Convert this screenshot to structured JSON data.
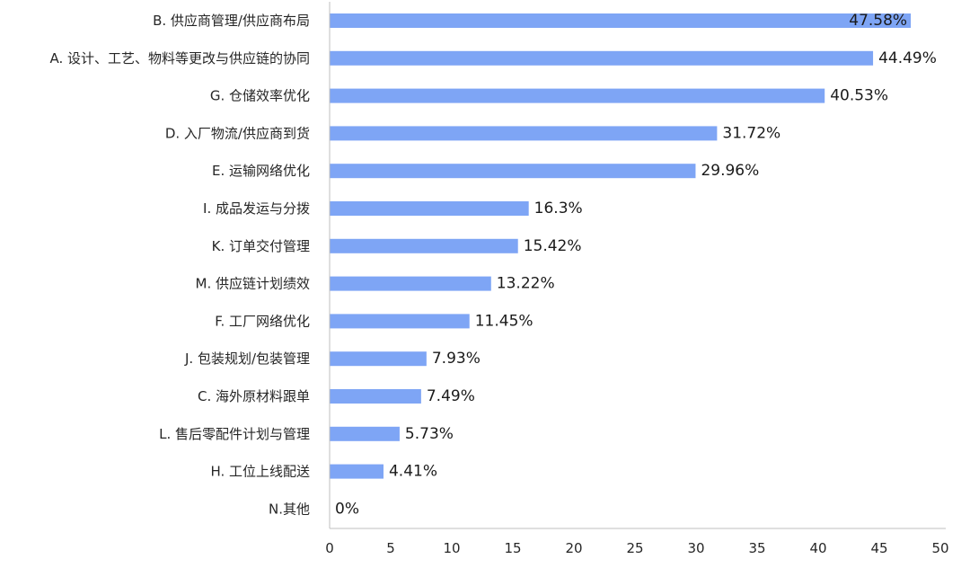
{
  "chart_data": {
    "type": "bar",
    "orientation": "horizontal",
    "categories": [
      "B. 供应商管理/供应商布局",
      "A. 设计、工艺、物料等更改与供应链的协同",
      "G. 仓储效率优化",
      "D. 入厂物流/供应商到货",
      "E. 运输网络优化",
      "I. 成品发运与分拨",
      "K. 订单交付管理",
      "M. 供应链计划绩效",
      "F. 工厂网络优化",
      "J. 包装规划/包装管理",
      "C. 海外原材料跟单",
      "L. 售后零配件计划与管理",
      "H. 工位上线配送",
      "N.其他"
    ],
    "values": [
      47.58,
      44.49,
      40.53,
      31.72,
      29.96,
      16.3,
      15.42,
      13.22,
      11.45,
      7.93,
      7.49,
      5.73,
      4.41,
      0
    ],
    "data_labels": [
      "47.58%",
      "44.49%",
      "40.53%",
      "31.72%",
      "29.96%",
      "16.3%",
      "15.42%",
      "13.22%",
      "11.45%",
      "7.93%",
      "7.49%",
      "5.73%",
      "4.41%",
      "0%"
    ],
    "xlim": [
      0,
      50
    ],
    "x_ticks": [
      0,
      5,
      10,
      15,
      20,
      25,
      30,
      35,
      40,
      45,
      50
    ],
    "title": "",
    "xlabel": "",
    "ylabel": "",
    "grid": false,
    "legend": "none",
    "bar_color": "#7ea5f5"
  }
}
